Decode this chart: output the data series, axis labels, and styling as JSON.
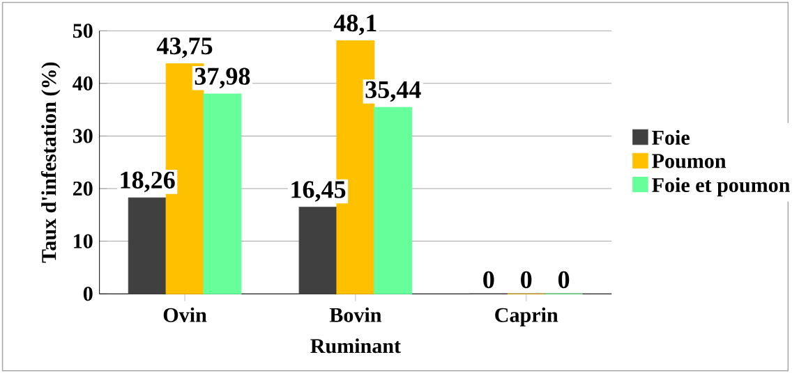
{
  "chart_data": {
    "type": "bar",
    "xlabel": "Ruminant",
    "ylabel": "Taux d'infestation (%)",
    "categories": [
      "Ovin",
      "Bovin",
      "Caprin"
    ],
    "series": [
      {
        "name": "Foie",
        "color": "#404040",
        "values": [
          18.26,
          16.45,
          0
        ],
        "value_labels": [
          "18,26",
          "16,45",
          "0"
        ]
      },
      {
        "name": "Poumon",
        "color": "#ffc000",
        "values": [
          43.75,
          48.1,
          0
        ],
        "value_labels": [
          "43,75",
          "48,1",
          "0"
        ]
      },
      {
        "name": "Foie et poumon",
        "color": "#66ff99",
        "values": [
          37.98,
          35.44,
          0
        ],
        "value_labels": [
          "37,98",
          "35,44",
          "0"
        ]
      }
    ],
    "ylim": [
      0,
      50
    ],
    "yticks": [
      0,
      10,
      20,
      30,
      40,
      50
    ],
    "grid": "y",
    "legend": "right"
  }
}
